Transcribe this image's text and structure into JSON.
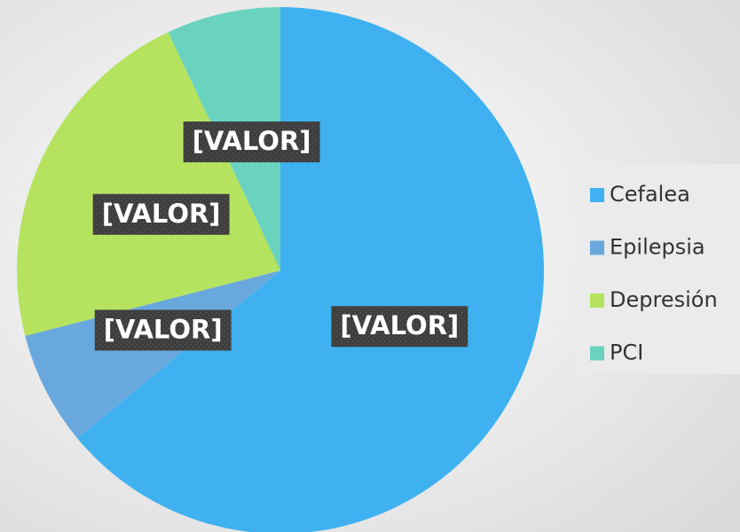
{
  "chart_data": {
    "type": "pie",
    "categories": [
      "Cefalea",
      "Epilepsia",
      "Depresión",
      "PCI"
    ],
    "values": [
      64,
      7,
      22,
      7
    ],
    "value_labels": [
      "[VALOR]",
      "[VALOR]",
      "[VALOR]",
      "[VALOR]"
    ],
    "colors": [
      "#3fb1f0",
      "#68a8dc",
      "#b5e35f",
      "#6ad3c0"
    ],
    "legend": "right"
  }
}
